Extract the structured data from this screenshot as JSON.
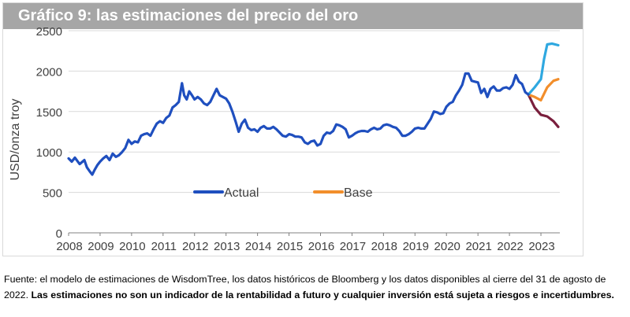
{
  "title": "Gráfico 9: las estimaciones del precio del oro",
  "footer": {
    "source": "Fuente: el modelo de estimaciones de WisdomTree, los datos históricos de Bloomberg y los datos disponibles al cierre del 31 de agosto de 2022.",
    "disclaimer": "Las estimaciones no son un indicador de la rentabilidad a futuro y cualquier inversión está sujeta a riesgos e incertidumbres."
  },
  "chart_data": {
    "type": "line",
    "title": "Gráfico 9: las estimaciones del precio del oro",
    "ylabel": "USD/onza troy",
    "xlabel": "",
    "ylim": [
      0,
      2500
    ],
    "xlim": [
      2008.0,
      2023.6
    ],
    "yticks": [
      0,
      500,
      1000,
      1500,
      2000,
      2500
    ],
    "xticks": [
      "2008",
      "2009",
      "2010",
      "2011",
      "2012",
      "2013",
      "2014",
      "2015",
      "2016",
      "2017",
      "2018",
      "2019",
      "2020",
      "2021",
      "2022",
      "2023"
    ],
    "grid": "horizontal",
    "legend": [
      {
        "name": "Actual",
        "color": "#1f4fbf"
      },
      {
        "name": "Base",
        "color": "#f28e2b"
      }
    ],
    "series": [
      {
        "name": "Actual",
        "color": "#1f4fbf",
        "x": [
          2008.0,
          2008.1,
          2008.2,
          2008.35,
          2008.5,
          2008.58,
          2008.67,
          2008.75,
          2008.83,
          2008.92,
          2009.0,
          2009.1,
          2009.2,
          2009.3,
          2009.4,
          2009.5,
          2009.6,
          2009.7,
          2009.8,
          2009.9,
          2010.0,
          2010.1,
          2010.2,
          2010.3,
          2010.4,
          2010.5,
          2010.6,
          2010.7,
          2010.8,
          2010.9,
          2011.0,
          2011.1,
          2011.2,
          2011.3,
          2011.4,
          2011.5,
          2011.6,
          2011.67,
          2011.75,
          2011.83,
          2011.92,
          2012.0,
          2012.1,
          2012.2,
          2012.3,
          2012.4,
          2012.5,
          2012.6,
          2012.7,
          2012.8,
          2012.9,
          2013.0,
          2013.1,
          2013.2,
          2013.3,
          2013.4,
          2013.5,
          2013.6,
          2013.7,
          2013.8,
          2013.9,
          2014.0,
          2014.1,
          2014.2,
          2014.3,
          2014.4,
          2014.5,
          2014.6,
          2014.7,
          2014.8,
          2014.9,
          2015.0,
          2015.1,
          2015.2,
          2015.3,
          2015.4,
          2015.5,
          2015.6,
          2015.7,
          2015.8,
          2015.9,
          2016.0,
          2016.1,
          2016.2,
          2016.3,
          2016.4,
          2016.5,
          2016.6,
          2016.7,
          2016.8,
          2016.9,
          2017.0,
          2017.1,
          2017.2,
          2017.3,
          2017.4,
          2017.5,
          2017.6,
          2017.7,
          2017.8,
          2017.9,
          2018.0,
          2018.1,
          2018.2,
          2018.3,
          2018.4,
          2018.5,
          2018.6,
          2018.7,
          2018.8,
          2018.9,
          2019.0,
          2019.1,
          2019.2,
          2019.3,
          2019.4,
          2019.5,
          2019.6,
          2019.7,
          2019.8,
          2019.9,
          2020.0,
          2020.1,
          2020.2,
          2020.3,
          2020.4,
          2020.5,
          2020.6,
          2020.7,
          2020.8,
          2020.9,
          2021.0,
          2021.1,
          2021.2,
          2021.3,
          2021.4,
          2021.5,
          2021.6,
          2021.7,
          2021.8,
          2021.9,
          2022.0,
          2022.1,
          2022.2,
          2022.3,
          2022.4,
          2022.5,
          2022.6
        ],
        "y": [
          920,
          880,
          930,
          850,
          900,
          810,
          760,
          720,
          780,
          840,
          880,
          920,
          950,
          900,
          980,
          940,
          960,
          1000,
          1050,
          1150,
          1100,
          1130,
          1120,
          1200,
          1220,
          1230,
          1200,
          1280,
          1350,
          1380,
          1360,
          1420,
          1450,
          1550,
          1580,
          1620,
          1850,
          1700,
          1650,
          1750,
          1700,
          1650,
          1680,
          1650,
          1600,
          1580,
          1620,
          1700,
          1780,
          1700,
          1680,
          1660,
          1600,
          1500,
          1380,
          1250,
          1350,
          1400,
          1300,
          1270,
          1280,
          1250,
          1300,
          1320,
          1290,
          1290,
          1310,
          1280,
          1240,
          1200,
          1190,
          1220,
          1210,
          1190,
          1190,
          1180,
          1120,
          1100,
          1130,
          1140,
          1080,
          1100,
          1200,
          1240,
          1230,
          1260,
          1340,
          1330,
          1310,
          1280,
          1180,
          1200,
          1230,
          1250,
          1260,
          1260,
          1250,
          1280,
          1300,
          1280,
          1290,
          1330,
          1340,
          1330,
          1310,
          1300,
          1260,
          1200,
          1200,
          1220,
          1250,
          1290,
          1300,
          1290,
          1290,
          1350,
          1410,
          1500,
          1490,
          1470,
          1480,
          1560,
          1600,
          1620,
          1700,
          1760,
          1830,
          1970,
          1970,
          1880,
          1870,
          1860,
          1730,
          1780,
          1680,
          1780,
          1810,
          1760,
          1760,
          1790,
          1800,
          1780,
          1830,
          1950,
          1870,
          1840,
          1740,
          1710
        ]
      },
      {
        "name": "Base",
        "color": "#f28e2b",
        "x": [
          2022.6,
          2022.8,
          2023.0,
          2023.2,
          2023.4,
          2023.55
        ],
        "y": [
          1710,
          1680,
          1640,
          1800,
          1880,
          1900
        ]
      },
      {
        "name": "",
        "color": "#2fa8e0",
        "x": [
          2022.6,
          2022.8,
          2023.0,
          2023.1,
          2023.2,
          2023.35,
          2023.55
        ],
        "y": [
          1710,
          1800,
          1900,
          2150,
          2330,
          2340,
          2320
        ]
      },
      {
        "name": "",
        "color": "#7a1f3d",
        "x": [
          2022.6,
          2022.8,
          2023.0,
          2023.2,
          2023.4,
          2023.55
        ],
        "y": [
          1710,
          1550,
          1460,
          1440,
          1380,
          1310
        ]
      }
    ]
  }
}
